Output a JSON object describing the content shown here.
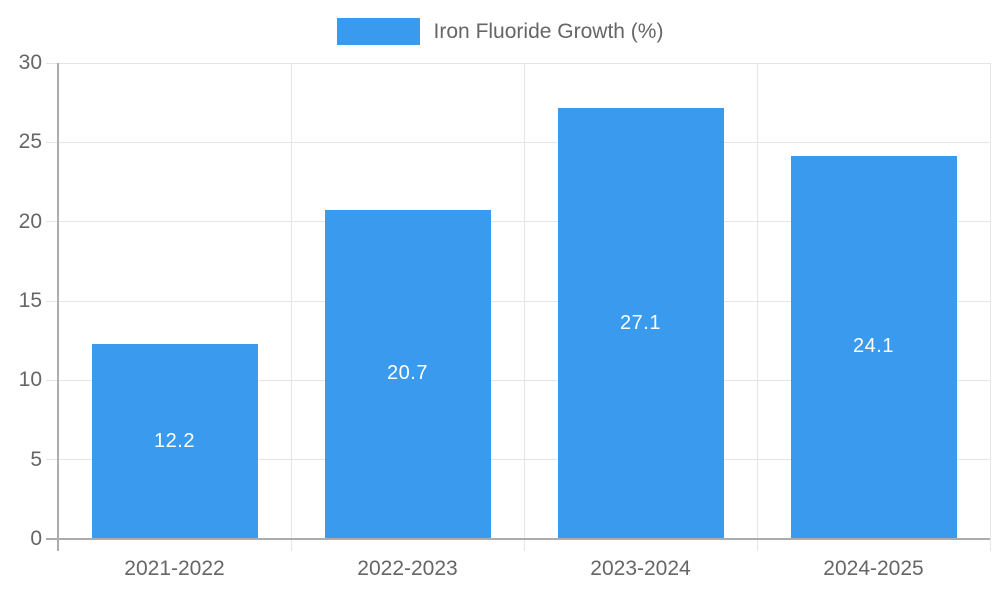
{
  "chart_data": {
    "type": "bar",
    "legend_label": "Iron Fluoride Growth (%)",
    "categories": [
      "2021-2022",
      "2022-2023",
      "2023-2024",
      "2024-2025"
    ],
    "values": [
      12.2,
      20.7,
      27.1,
      24.1
    ],
    "bar_labels": [
      "12.2",
      "20.7",
      "27.1",
      "24.1"
    ],
    "yticks": [
      0,
      5,
      10,
      15,
      20,
      25,
      30
    ],
    "ylim": [
      0,
      30
    ],
    "legend_position": "top",
    "grid": true,
    "colors": {
      "bar": "#399AEE",
      "bar_label": "#FFFFFF",
      "axis_text": "#666666",
      "axis_line": "#ACACAC",
      "gridline": "#E5E5E5",
      "background": "#FFFFFF"
    }
  }
}
